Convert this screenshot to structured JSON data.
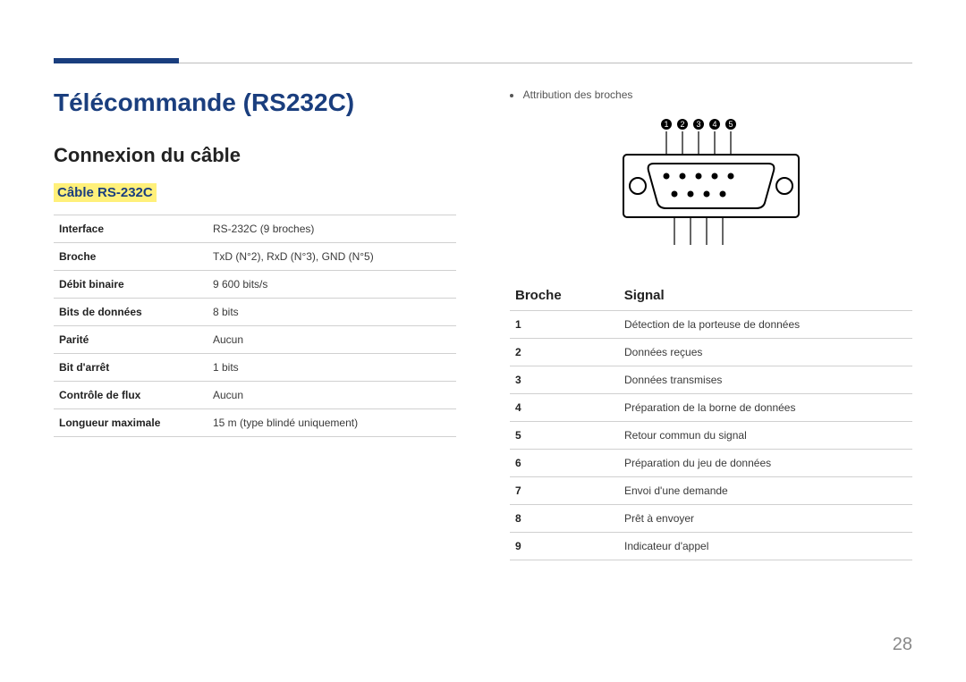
{
  "colors": {
    "accent": "#1a3e7e",
    "highlight": "#fff07a",
    "rule": "#bdbdbd",
    "tableBorder": "#d0d0d0",
    "pageNum": "#888888",
    "bodyText": "#3a3a3a"
  },
  "title": "Télécommande (RS232C)",
  "section": "Connexion du câble",
  "subsection": "Câble RS-232C",
  "specs": [
    {
      "label": "Interface",
      "value": "RS-232C (9 broches)"
    },
    {
      "label": "Broche",
      "value": "TxD (N°2), RxD (N°3), GND (N°5)"
    },
    {
      "label": "Débit binaire",
      "value": "9 600 bits/s"
    },
    {
      "label": "Bits de données",
      "value": "8 bits"
    },
    {
      "label": "Parité",
      "value": "Aucun"
    },
    {
      "label": "Bit d'arrêt",
      "value": "1 bits"
    },
    {
      "label": "Contrôle de flux",
      "value": "Aucun"
    },
    {
      "label": "Longueur maximale",
      "value": "15 m (type blindé uniquement)"
    }
  ],
  "attribution": "Attribution des broches",
  "pinNumbers": [
    "1",
    "2",
    "3",
    "4",
    "5"
  ],
  "pinTable": {
    "headers": {
      "pin": "Broche",
      "signal": "Signal"
    },
    "rows": [
      {
        "pin": "1",
        "signal": "Détection de la porteuse de données"
      },
      {
        "pin": "2",
        "signal": "Données reçues"
      },
      {
        "pin": "3",
        "signal": "Données transmises"
      },
      {
        "pin": "4",
        "signal": "Préparation de la borne de données"
      },
      {
        "pin": "5",
        "signal": "Retour commun du signal"
      },
      {
        "pin": "6",
        "signal": "Préparation du jeu de données"
      },
      {
        "pin": "7",
        "signal": "Envoi d'une demande"
      },
      {
        "pin": "8",
        "signal": "Prêt à envoyer"
      },
      {
        "pin": "9",
        "signal": "Indicateur d'appel"
      }
    ]
  },
  "pageNumber": "28"
}
